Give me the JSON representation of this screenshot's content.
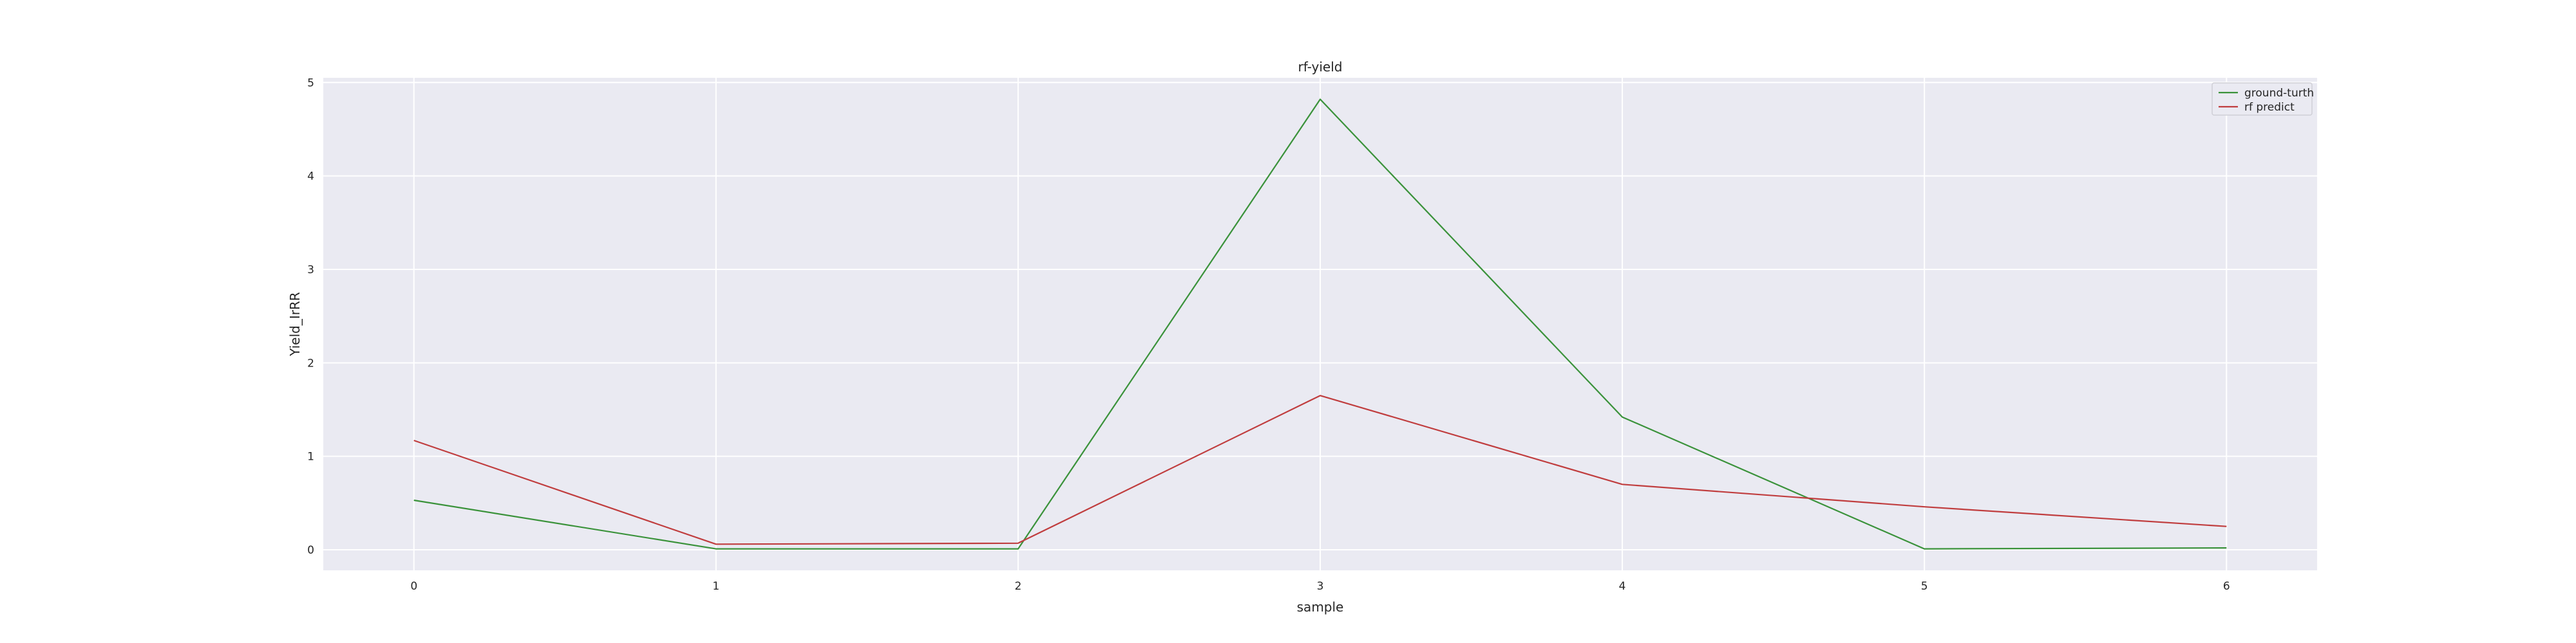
{
  "chart_data": {
    "type": "line",
    "title": "rf-yield",
    "xlabel": "sample",
    "ylabel": "Yield_IrRR",
    "x": [
      0,
      1,
      2,
      3,
      4,
      5,
      6
    ],
    "xticks": [
      "0",
      "1",
      "2",
      "3",
      "4",
      "5",
      "6"
    ],
    "yticks": [
      "0",
      "1",
      "2",
      "3",
      "4",
      "5"
    ],
    "xlim": [
      -0.3,
      6.3
    ],
    "ylim": [
      -0.22,
      5.05
    ],
    "grid": true,
    "legend_position": "top-right",
    "series": [
      {
        "name": "ground-turth",
        "color": "#3A923A",
        "values": [
          0.53,
          0.01,
          0.01,
          4.82,
          1.42,
          0.01,
          0.02
        ]
      },
      {
        "name": "rf predict",
        "color": "#C03D3E",
        "values": [
          1.17,
          0.06,
          0.07,
          1.65,
          0.7,
          0.46,
          0.25
        ]
      }
    ]
  }
}
